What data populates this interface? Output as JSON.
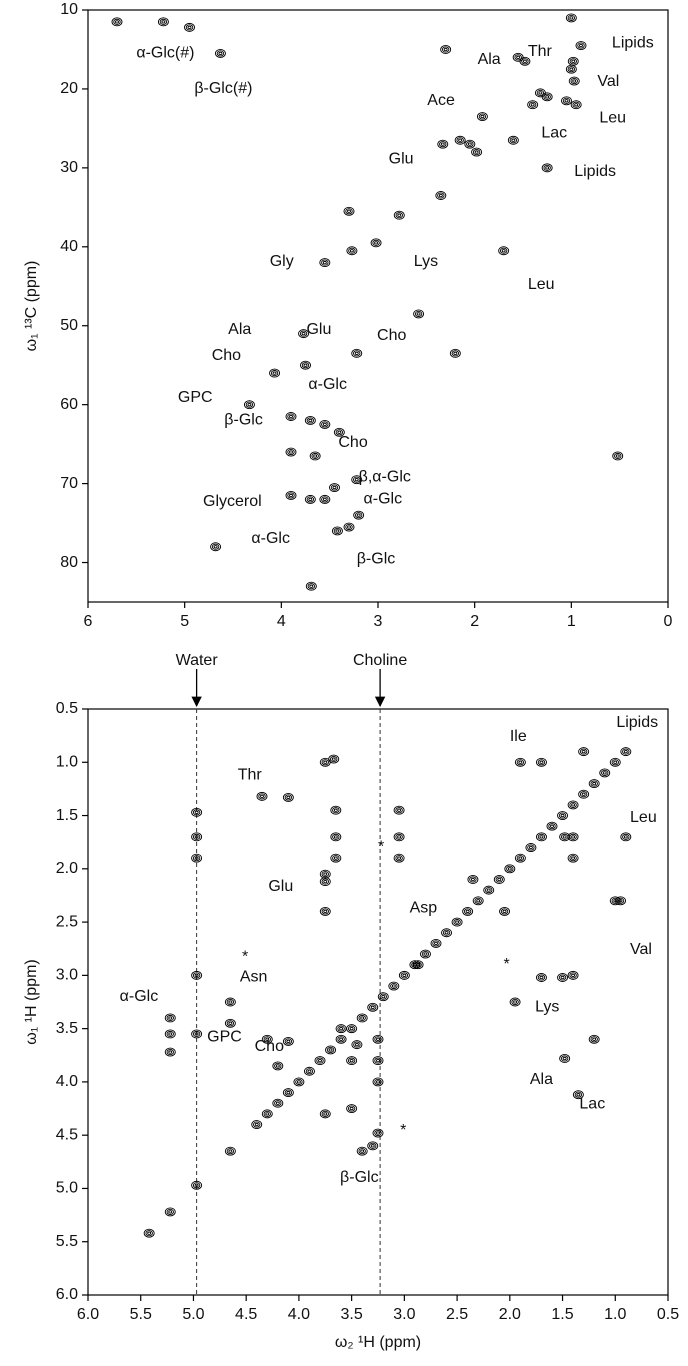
{
  "chart_data": [
    {
      "type": "scatter",
      "y_label": "ω₁ ¹³C (ppm)",
      "xlim": [
        0,
        6
      ],
      "x_inverted": true,
      "xticks": [
        6,
        5,
        4,
        3,
        2,
        1,
        0
      ],
      "ylim": [
        10,
        85
      ],
      "y_inverted": true,
      "yticks": [
        10,
        20,
        30,
        40,
        50,
        60,
        70,
        80
      ],
      "series": [
        {
          "color": "#000000",
          "x": [
            5.22,
            4.63,
            5.7,
            4.95,
            1.48,
            1.32,
            1.25,
            1.0,
            0.97,
            0.9,
            0.95,
            1.25,
            1.7,
            1.92,
            1.55,
            2.35,
            2.05,
            1.98,
            2.33,
            2.15,
            1.6,
            3.02,
            3.27,
            3.55,
            3.77,
            3.75,
            3.22,
            4.07,
            4.33,
            3.9,
            3.7,
            3.55,
            3.4,
            3.9,
            3.65,
            3.45,
            3.22,
            3.9,
            3.7,
            3.55,
            3.3,
            3.42,
            3.2,
            2.78,
            2.58,
            3.3,
            1.0,
            2.3,
            0.52,
            4.68,
            3.69,
            0.98,
            1.05,
            2.2,
            1.4
          ],
          "y": [
            11.5,
            15.5,
            11.5,
            12.2,
            16.5,
            20.5,
            21.0,
            17.5,
            19.0,
            14.5,
            22.0,
            30.0,
            40.5,
            23.5,
            16.0,
            33.5,
            27.0,
            28.0,
            27.0,
            26.5,
            26.5,
            39.5,
            40.5,
            42.0,
            51.0,
            55.0,
            53.5,
            56.0,
            60.0,
            61.5,
            62.0,
            62.5,
            63.5,
            66.0,
            66.5,
            70.5,
            69.5,
            71.5,
            72.0,
            72.0,
            75.5,
            76.0,
            74.0,
            36.0,
            48.5,
            35.5,
            11.0,
            15.0,
            66.5,
            78.0,
            83.0,
            16.5,
            21.5,
            53.5,
            22.0
          ]
        }
      ],
      "annotations": [
        {
          "text": "α-Glc(#)",
          "x": 5.5,
          "y": 15.5
        },
        {
          "text": "β-Glc(#)",
          "x": 4.9,
          "y": 20.0
        },
        {
          "text": "Lipids",
          "x": 0.58,
          "y": 14.2
        },
        {
          "text": "Ala",
          "x": 1.97,
          "y": 16.3
        },
        {
          "text": "Thr",
          "x": 1.45,
          "y": 15.3
        },
        {
          "text": "Val",
          "x": 0.73,
          "y": 19.1
        },
        {
          "text": "Leu",
          "x": 0.71,
          "y": 23.7
        },
        {
          "text": "Ace",
          "x": 2.49,
          "y": 21.5
        },
        {
          "text": "Lac",
          "x": 1.31,
          "y": 25.6
        },
        {
          "text": "Glu",
          "x": 2.89,
          "y": 28.9
        },
        {
          "text": "Lipids",
          "x": 0.97,
          "y": 30.5
        },
        {
          "text": "Lys",
          "x": 2.63,
          "y": 41.9
        },
        {
          "text": "Gly",
          "x": 4.12,
          "y": 41.9
        },
        {
          "text": "Leu",
          "x": 1.45,
          "y": 44.8
        },
        {
          "text": "Ala",
          "x": 4.55,
          "y": 50.5
        },
        {
          "text": "Glu",
          "x": 3.74,
          "y": 50.5
        },
        {
          "text": "Cho",
          "x": 3.01,
          "y": 51.3
        },
        {
          "text": "Cho",
          "x": 4.72,
          "y": 53.8
        },
        {
          "text": "α-Glc",
          "x": 3.72,
          "y": 57.5
        },
        {
          "text": "GPC",
          "x": 5.07,
          "y": 59.1
        },
        {
          "text": "β-Glc",
          "x": 4.59,
          "y": 62.0
        },
        {
          "text": "Cho",
          "x": 3.41,
          "y": 64.8
        },
        {
          "text": "β,α-Glc",
          "x": 3.2,
          "y": 69.2
        },
        {
          "text": "Glycerol",
          "x": 4.81,
          "y": 72.3
        },
        {
          "text": "α-Glc",
          "x": 3.15,
          "y": 72.0
        },
        {
          "text": "α-Glc",
          "x": 4.31,
          "y": 77.0
        },
        {
          "text": "β-Glc",
          "x": 3.22,
          "y": 79.6
        }
      ]
    },
    {
      "type": "scatter",
      "x_label": "ω₂ ¹H (ppm)",
      "y_label": "ω₁ ¹H (ppm)",
      "xlim": [
        0.5,
        6.0
      ],
      "x_inverted": true,
      "xticks": [
        {
          "value": 6,
          "label": "6.0"
        },
        5.5,
        {
          "value": 5,
          "label": "5.0"
        },
        4.5,
        {
          "value": 4,
          "label": "4.0"
        },
        3.5,
        {
          "value": 3,
          "label": "3.0"
        },
        2.5,
        {
          "value": 2,
          "label": "2.0"
        },
        1.5,
        {
          "value": 1,
          "label": "1.0"
        },
        0.5
      ],
      "ylim": [
        0.5,
        6.0
      ],
      "y_inverted": true,
      "yticks": [
        0.5,
        {
          "value": 1,
          "label": "1.0"
        },
        1.5,
        {
          "value": 2,
          "label": "2.0"
        },
        2.5,
        {
          "value": 3,
          "label": "3.0"
        },
        3.5,
        {
          "value": 4,
          "label": "4.0"
        },
        4.5,
        {
          "value": 5,
          "label": "5.0"
        },
        5.5,
        {
          "value": 6,
          "label": "6.0"
        }
      ],
      "reference_lines": [
        {
          "label": "Water",
          "x": 4.97
        },
        {
          "label": "Choline",
          "x": 3.23
        }
      ],
      "series": [
        {
          "color": "#000000",
          "x": [
            0.9,
            1.0,
            1.1,
            1.2,
            1.3,
            1.4,
            1.5,
            1.6,
            1.7,
            1.8,
            1.9,
            2.0,
            2.1,
            2.2,
            2.3,
            2.4,
            2.5,
            2.6,
            2.7,
            2.8,
            2.9,
            3.0,
            3.1,
            3.2,
            3.3,
            3.4,
            3.5,
            3.6,
            3.7,
            3.8,
            3.9,
            4.0,
            4.1,
            4.2,
            4.3,
            4.4,
            4.97,
            4.97,
            4.97,
            4.97,
            4.97,
            4.97,
            5.22,
            5.22,
            5.22,
            5.22,
            5.42,
            4.65,
            4.65,
            4.65,
            4.35,
            4.1,
            3.75,
            3.75,
            3.75,
            3.75,
            3.67,
            3.65,
            3.65,
            3.65,
            2.87,
            3.05,
            3.05,
            3.05,
            2.35,
            2.05,
            1.9,
            1.7,
            1.48,
            1.4,
            1.4,
            1.3,
            1.0,
            0.95,
            0.9,
            1.7,
            1.5,
            1.4,
            1.95,
            1.48,
            1.35,
            1.2,
            3.3,
            3.4,
            3.25,
            4.1,
            4.3,
            4.2,
            3.75,
            3.5,
            3.25,
            3.25,
            3.25,
            3.6,
            3.5,
            3.45
          ],
          "y": [
            0.9,
            1.0,
            1.1,
            1.2,
            1.3,
            1.4,
            1.5,
            1.6,
            1.7,
            1.8,
            1.9,
            2.0,
            2.1,
            2.2,
            2.3,
            2.4,
            2.5,
            2.6,
            2.7,
            2.8,
            2.9,
            3.0,
            3.1,
            3.2,
            3.3,
            3.4,
            3.5,
            3.6,
            3.7,
            3.8,
            3.9,
            4.0,
            4.1,
            4.2,
            4.3,
            4.4,
            1.47,
            1.7,
            1.9,
            3.0,
            3.55,
            4.97,
            3.4,
            3.55,
            3.72,
            5.22,
            5.42,
            3.25,
            3.45,
            4.65,
            1.32,
            1.33,
            1.0,
            2.05,
            2.12,
            2.4,
            0.97,
            1.45,
            1.7,
            1.9,
            2.9,
            1.45,
            1.7,
            1.9,
            2.1,
            2.4,
            1.0,
            1.0,
            1.7,
            1.7,
            1.9,
            0.9,
            2.3,
            2.3,
            1.7,
            3.02,
            3.02,
            3.0,
            3.25,
            3.78,
            4.12,
            3.6,
            4.6,
            4.65,
            4.48,
            3.62,
            3.6,
            3.85,
            4.3,
            4.25,
            4.0,
            3.8,
            3.6,
            3.5,
            3.8,
            3.65
          ]
        }
      ],
      "annotations": [
        {
          "text": "Lipids",
          "x": 0.99,
          "y": 0.63
        },
        {
          "text": "Ile",
          "x": 2.0,
          "y": 0.76
        },
        {
          "text": "Thr",
          "x": 4.58,
          "y": 1.12
        },
        {
          "text": "Leu",
          "x": 0.86,
          "y": 1.52
        },
        {
          "text": "Glu",
          "x": 4.29,
          "y": 2.17
        },
        {
          "text": "Val",
          "x": 0.86,
          "y": 2.76
        },
        {
          "text": "Asp",
          "x": 2.95,
          "y": 2.37
        },
        {
          "text": "Asn",
          "x": 4.56,
          "y": 3.02
        },
        {
          "text": "Lys",
          "x": 1.76,
          "y": 3.3
        },
        {
          "text": "α-Glc",
          "x": 5.7,
          "y": 3.2
        },
        {
          "text": "GPC",
          "x": 4.87,
          "y": 3.58
        },
        {
          "text": "Cho",
          "x": 4.42,
          "y": 3.67
        },
        {
          "text": "Ala",
          "x": 1.81,
          "y": 3.98
        },
        {
          "text": "Lac",
          "x": 1.34,
          "y": 4.21
        },
        {
          "text": "β-Glc",
          "x": 3.61,
          "y": 4.9
        },
        {
          "text": "*",
          "x": 4.54,
          "y": 2.83
        },
        {
          "text": "*",
          "x": 3.25,
          "y": 1.8
        },
        {
          "text": "*",
          "x": 2.06,
          "y": 2.9
        },
        {
          "text": "*",
          "x": 3.04,
          "y": 4.46
        }
      ]
    }
  ]
}
